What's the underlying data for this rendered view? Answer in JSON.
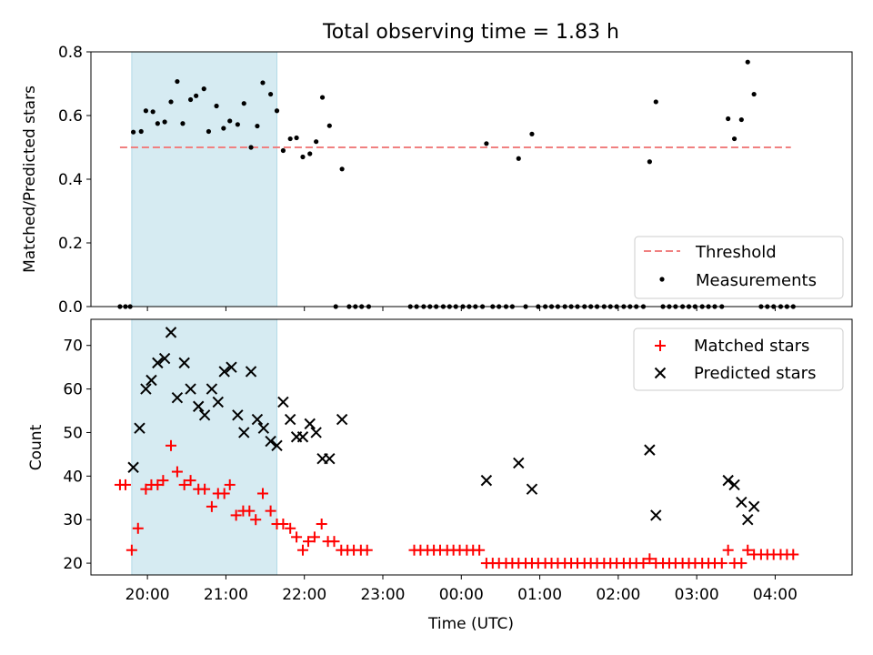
{
  "figure": {
    "title": "Total observing time = 1.83 h"
  },
  "chart_data": [
    {
      "type": "scatter",
      "panel": "top",
      "xlabel": "",
      "ylabel": "Matched/Predicted stars",
      "xlim_hours": [
        19.28,
        28.98
      ],
      "ylim": [
        0,
        0.8
      ],
      "yticks": [
        0.0,
        0.2,
        0.4,
        0.6,
        0.8
      ],
      "ytick_labels": [
        "0.0",
        "0.2",
        "0.4",
        "0.6",
        "0.8"
      ],
      "shaded_span_hours": [
        19.8,
        21.65
      ],
      "shaded_color": "#add8e6",
      "threshold": {
        "name": "Threshold",
        "value": 0.5,
        "x_range_hours": [
          19.65,
          24.2,
          28.2
        ],
        "color": "#f08080"
      },
      "legend_location": "lower right",
      "series": [
        {
          "name": "Measurements",
          "color": "#000000",
          "marker": "dot",
          "points_hours": [
            [
              19.65,
              0.0
            ],
            [
              19.72,
              0.0
            ],
            [
              19.78,
              0.0
            ],
            [
              19.82,
              0.548
            ],
            [
              19.92,
              0.55
            ],
            [
              19.98,
              0.615
            ],
            [
              20.07,
              0.612
            ],
            [
              20.13,
              0.575
            ],
            [
              20.22,
              0.58
            ],
            [
              20.3,
              0.643
            ],
            [
              20.38,
              0.707
            ],
            [
              20.45,
              0.575
            ],
            [
              20.55,
              0.65
            ],
            [
              20.62,
              0.662
            ],
            [
              20.72,
              0.684
            ],
            [
              20.78,
              0.55
            ],
            [
              20.88,
              0.63
            ],
            [
              20.97,
              0.56
            ],
            [
              21.05,
              0.583
            ],
            [
              21.15,
              0.572
            ],
            [
              21.23,
              0.638
            ],
            [
              21.32,
              0.5
            ],
            [
              21.4,
              0.567
            ],
            [
              21.47,
              0.703
            ],
            [
              21.57,
              0.667
            ],
            [
              21.65,
              0.615
            ],
            [
              21.73,
              0.49
            ],
            [
              21.82,
              0.527
            ],
            [
              21.9,
              0.53
            ],
            [
              21.98,
              0.47
            ],
            [
              22.07,
              0.48
            ],
            [
              22.15,
              0.518
            ],
            [
              22.23,
              0.657
            ],
            [
              22.32,
              0.568
            ],
            [
              22.48,
              0.432
            ],
            [
              22.4,
              0.0
            ],
            [
              22.57,
              0.0
            ],
            [
              22.65,
              0.0
            ],
            [
              22.73,
              0.0
            ],
            [
              22.82,
              0.0
            ],
            [
              23.35,
              0.0
            ],
            [
              23.43,
              0.0
            ],
            [
              23.52,
              0.0
            ],
            [
              23.6,
              0.0
            ],
            [
              23.68,
              0.0
            ],
            [
              23.77,
              0.0
            ],
            [
              23.85,
              0.0
            ],
            [
              23.93,
              0.0
            ],
            [
              24.02,
              0.0
            ],
            [
              24.1,
              0.0
            ],
            [
              24.18,
              0.0
            ],
            [
              24.27,
              0.0
            ],
            [
              24.32,
              0.512
            ],
            [
              24.4,
              0.0
            ],
            [
              24.48,
              0.0
            ],
            [
              24.57,
              0.0
            ],
            [
              24.65,
              0.0
            ],
            [
              24.73,
              0.465
            ],
            [
              24.82,
              0.0
            ],
            [
              24.9,
              0.542
            ],
            [
              24.98,
              0.0
            ],
            [
              25.07,
              0.0
            ],
            [
              25.15,
              0.0
            ],
            [
              25.23,
              0.0
            ],
            [
              25.32,
              0.0
            ],
            [
              25.4,
              0.0
            ],
            [
              25.48,
              0.0
            ],
            [
              25.57,
              0.0
            ],
            [
              25.65,
              0.0
            ],
            [
              25.73,
              0.0
            ],
            [
              25.82,
              0.0
            ],
            [
              25.9,
              0.0
            ],
            [
              25.98,
              0.0
            ],
            [
              26.07,
              0.0
            ],
            [
              26.15,
              0.0
            ],
            [
              26.23,
              0.0
            ],
            [
              26.32,
              0.0
            ],
            [
              26.4,
              0.455
            ],
            [
              26.48,
              0.643
            ],
            [
              26.57,
              0.0
            ],
            [
              26.65,
              0.0
            ],
            [
              26.73,
              0.0
            ],
            [
              26.82,
              0.0
            ],
            [
              26.9,
              0.0
            ],
            [
              26.98,
              0.0
            ],
            [
              27.07,
              0.0
            ],
            [
              27.15,
              0.0
            ],
            [
              27.23,
              0.0
            ],
            [
              27.32,
              0.0
            ],
            [
              27.4,
              0.59
            ],
            [
              27.48,
              0.527
            ],
            [
              27.57,
              0.587
            ],
            [
              27.65,
              0.768
            ],
            [
              27.73,
              0.667
            ],
            [
              27.82,
              0.0
            ],
            [
              27.9,
              0.0
            ],
            [
              27.98,
              0.0
            ],
            [
              28.07,
              0.0
            ],
            [
              28.15,
              0.0
            ],
            [
              28.23,
              0.0
            ]
          ]
        }
      ]
    },
    {
      "type": "scatter",
      "panel": "bottom",
      "xlabel": "Time (UTC)",
      "ylabel": "Count",
      "xlim_hours": [
        19.28,
        28.98
      ],
      "ylim": [
        17.3,
        76
      ],
      "yticks": [
        20,
        30,
        40,
        50,
        60,
        70
      ],
      "ytick_labels": [
        "20",
        "30",
        "40",
        "50",
        "60",
        "70"
      ],
      "xticks_hours": [
        20,
        21,
        22,
        23,
        24,
        25,
        26,
        27,
        28
      ],
      "xtick_labels": [
        "20:00",
        "21:00",
        "22:00",
        "23:00",
        "00:00",
        "01:00",
        "02:00",
        "03:00",
        "04:00"
      ],
      "shaded_span_hours": [
        19.8,
        21.65
      ],
      "shaded_color": "#add8e6",
      "legend_location": "upper right",
      "series": [
        {
          "name": "Matched stars",
          "color": "#ff0000",
          "marker": "plus",
          "points_hours": [
            [
              19.65,
              38
            ],
            [
              19.72,
              38
            ],
            [
              19.8,
              23
            ],
            [
              19.88,
              28
            ],
            [
              19.98,
              37
            ],
            [
              20.05,
              38
            ],
            [
              20.13,
              38
            ],
            [
              20.2,
              39
            ],
            [
              20.3,
              47
            ],
            [
              20.38,
              41
            ],
            [
              20.47,
              38
            ],
            [
              20.55,
              39
            ],
            [
              20.65,
              37
            ],
            [
              20.73,
              37
            ],
            [
              20.82,
              33
            ],
            [
              20.9,
              36
            ],
            [
              20.98,
              36
            ],
            [
              21.05,
              38
            ],
            [
              21.13,
              31
            ],
            [
              21.22,
              32
            ],
            [
              21.3,
              32
            ],
            [
              21.38,
              30
            ],
            [
              21.47,
              36
            ],
            [
              21.57,
              32
            ],
            [
              21.65,
              29
            ],
            [
              21.73,
              29
            ],
            [
              21.82,
              28
            ],
            [
              21.9,
              26
            ],
            [
              21.98,
              23
            ],
            [
              22.05,
              25
            ],
            [
              22.13,
              26
            ],
            [
              22.22,
              29
            ],
            [
              22.3,
              25
            ],
            [
              22.38,
              25
            ],
            [
              22.47,
              23
            ],
            [
              22.55,
              23
            ],
            [
              22.63,
              23
            ],
            [
              22.72,
              23
            ],
            [
              22.8,
              23
            ],
            [
              23.4,
              23
            ],
            [
              23.48,
              23
            ],
            [
              23.57,
              23
            ],
            [
              23.65,
              23
            ],
            [
              23.73,
              23
            ],
            [
              23.82,
              23
            ],
            [
              23.9,
              23
            ],
            [
              23.98,
              23
            ],
            [
              24.07,
              23
            ],
            [
              24.15,
              23
            ],
            [
              24.23,
              23
            ],
            [
              24.32,
              20
            ],
            [
              24.4,
              20
            ],
            [
              24.48,
              20
            ],
            [
              24.57,
              20
            ],
            [
              24.65,
              20
            ],
            [
              24.73,
              20
            ],
            [
              24.82,
              20
            ],
            [
              24.9,
              20
            ],
            [
              24.98,
              20
            ],
            [
              25.07,
              20
            ],
            [
              25.15,
              20
            ],
            [
              25.23,
              20
            ],
            [
              25.32,
              20
            ],
            [
              25.4,
              20
            ],
            [
              25.48,
              20
            ],
            [
              25.57,
              20
            ],
            [
              25.65,
              20
            ],
            [
              25.73,
              20
            ],
            [
              25.82,
              20
            ],
            [
              25.9,
              20
            ],
            [
              25.98,
              20
            ],
            [
              26.07,
              20
            ],
            [
              26.15,
              20
            ],
            [
              26.23,
              20
            ],
            [
              26.32,
              20
            ],
            [
              26.4,
              21
            ],
            [
              26.48,
              20
            ],
            [
              26.57,
              20
            ],
            [
              26.65,
              20
            ],
            [
              26.73,
              20
            ],
            [
              26.82,
              20
            ],
            [
              26.9,
              20
            ],
            [
              26.98,
              20
            ],
            [
              27.07,
              20
            ],
            [
              27.15,
              20
            ],
            [
              27.23,
              20
            ],
            [
              27.32,
              20
            ],
            [
              27.4,
              23
            ],
            [
              27.48,
              20
            ],
            [
              27.57,
              20
            ],
            [
              27.65,
              23
            ],
            [
              27.73,
              22
            ],
            [
              27.82,
              22
            ],
            [
              27.9,
              22
            ],
            [
              27.98,
              22
            ],
            [
              28.07,
              22
            ],
            [
              28.15,
              22
            ],
            [
              28.23,
              22
            ]
          ]
        },
        {
          "name": "Predicted stars",
          "color": "#000000",
          "marker": "x",
          "points_hours": [
            [
              19.82,
              42
            ],
            [
              19.9,
              51
            ],
            [
              19.98,
              60
            ],
            [
              20.05,
              62
            ],
            [
              20.13,
              66
            ],
            [
              20.22,
              67
            ],
            [
              20.3,
              73
            ],
            [
              20.38,
              58
            ],
            [
              20.47,
              66
            ],
            [
              20.55,
              60
            ],
            [
              20.65,
              56
            ],
            [
              20.73,
              54
            ],
            [
              20.82,
              60
            ],
            [
              20.9,
              57
            ],
            [
              20.98,
              64
            ],
            [
              21.07,
              65
            ],
            [
              21.15,
              54
            ],
            [
              21.23,
              50
            ],
            [
              21.32,
              64
            ],
            [
              21.4,
              53
            ],
            [
              21.48,
              51
            ],
            [
              21.57,
              48
            ],
            [
              21.65,
              47
            ],
            [
              21.73,
              57
            ],
            [
              21.82,
              53
            ],
            [
              21.9,
              49
            ],
            [
              21.98,
              49
            ],
            [
              22.07,
              52
            ],
            [
              22.15,
              50
            ],
            [
              22.23,
              44
            ],
            [
              22.32,
              44
            ],
            [
              22.48,
              53
            ],
            [
              24.32,
              39
            ],
            [
              24.73,
              43
            ],
            [
              24.9,
              37
            ],
            [
              26.4,
              46
            ],
            [
              26.48,
              31
            ],
            [
              27.4,
              39
            ],
            [
              27.48,
              38
            ],
            [
              27.57,
              34
            ],
            [
              27.65,
              30
            ],
            [
              27.73,
              33
            ]
          ]
        }
      ]
    }
  ]
}
